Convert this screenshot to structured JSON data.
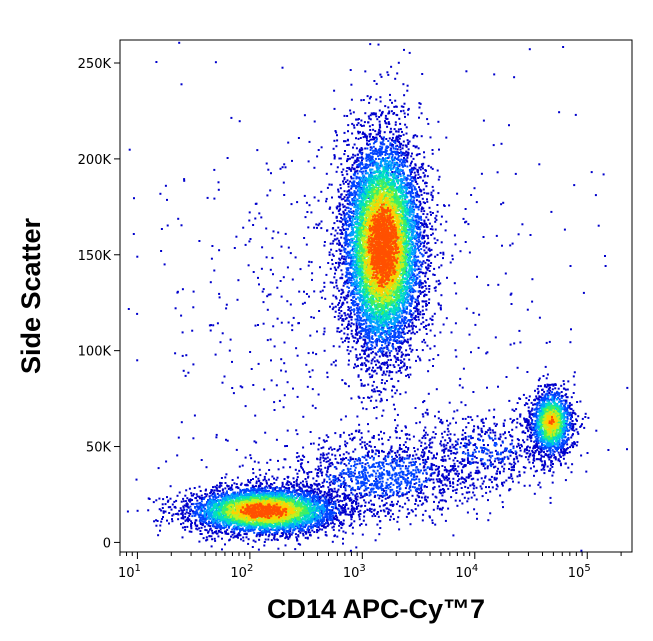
{
  "chart_data": {
    "type": "scatter",
    "subtype": "flow-cytometry-density-dot-plot",
    "title": "",
    "xlabel": "CD14 APC-Cy™7",
    "ylabel": "Side Scatter",
    "x_scale": "log",
    "xlim": [
      7,
      250000
    ],
    "ylim": [
      -5000,
      262000
    ],
    "x_ticks": [
      {
        "value": 10,
        "base": "10",
        "exp": "1"
      },
      {
        "value": 100,
        "base": "10",
        "exp": "2"
      },
      {
        "value": 1000,
        "base": "10",
        "exp": "3"
      },
      {
        "value": 10000,
        "base": "10",
        "exp": "4"
      },
      {
        "value": 100000,
        "base": "10",
        "exp": "5"
      }
    ],
    "y_ticks": [
      {
        "value": 0,
        "label": "0"
      },
      {
        "value": 50000,
        "label": "50K"
      },
      {
        "value": 100000,
        "label": "100K"
      },
      {
        "value": 150000,
        "label": "150K"
      },
      {
        "value": 200000,
        "label": "200K"
      },
      {
        "value": 250000,
        "label": "250K"
      }
    ],
    "grid": false,
    "color_scale": [
      "#0000cc",
      "#0044ff",
      "#00a0ff",
      "#00e0c0",
      "#40f060",
      "#c0f020",
      "#ffd000",
      "#ff5000"
    ],
    "populations": [
      {
        "x_center": 1500,
        "y_center": 155000,
        "x_spread_log": 0.17,
        "y_spread": 27000,
        "events": 9000,
        "peak_density": 1.0
      },
      {
        "x_center": 130,
        "y_center": 17000,
        "x_spread_log": 0.33,
        "y_spread": 6000,
        "events": 5000,
        "peak_density": 0.9
      },
      {
        "x_center": 47000,
        "y_center": 63000,
        "x_spread_log": 0.09,
        "y_spread": 8500,
        "events": 1700,
        "peak_density": 0.75
      },
      {
        "x_center": 1500,
        "y_center": 35000,
        "x_spread_log": 0.45,
        "y_spread": 10000,
        "events": 1200,
        "peak_density": 0.2
      },
      {
        "x_center": 12000,
        "y_center": 48000,
        "x_spread_log": 0.35,
        "y_spread": 10000,
        "events": 600,
        "peak_density": 0.15
      },
      {
        "x_center": 800,
        "y_center": 120000,
        "x_spread_log": 0.9,
        "y_spread": 60000,
        "events": 700,
        "peak_density": 0.05
      }
    ]
  }
}
